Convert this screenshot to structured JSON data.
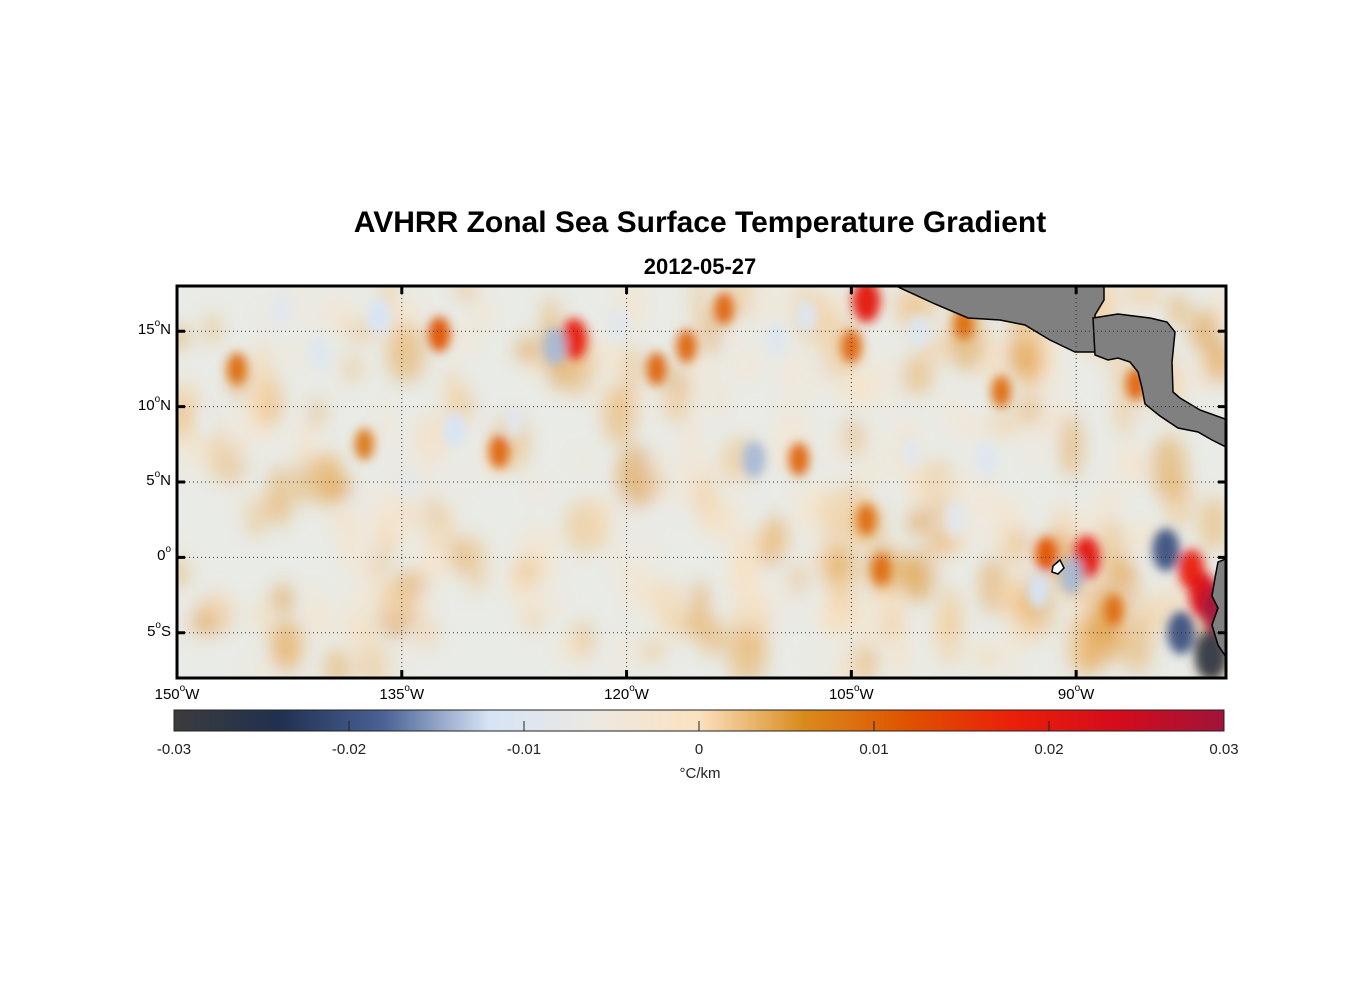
{
  "title": "AVHRR Zonal Sea Surface Temperature Gradient",
  "subtitle": "2012-05-27",
  "map": {
    "projection": "equirectangular",
    "lon_range": [
      -150,
      -80
    ],
    "lat_range": [
      -8,
      18
    ],
    "grid": "dotted",
    "land_color": "#808080",
    "lat_ticks": [
      {
        "value": 15,
        "num": "15",
        "hemi": "N"
      },
      {
        "value": 10,
        "num": "10",
        "hemi": "N"
      },
      {
        "value": 5,
        "num": "5",
        "hemi": "N"
      },
      {
        "value": 0,
        "num": "0",
        "hemi": ""
      },
      {
        "value": -5,
        "num": "5",
        "hemi": "S"
      }
    ],
    "lon_ticks": [
      {
        "value": -150,
        "num": "150",
        "hemi": "W"
      },
      {
        "value": -135,
        "num": "135",
        "hemi": "W"
      },
      {
        "value": -120,
        "num": "120",
        "hemi": "W"
      },
      {
        "value": -105,
        "num": "105",
        "hemi": "W"
      },
      {
        "value": -90,
        "num": "90",
        "hemi": "W"
      }
    ],
    "field_features": [
      {
        "lon": -132.5,
        "lat": 14.8,
        "value": 0.012
      },
      {
        "lon": -123.5,
        "lat": 14.5,
        "value": 0.018
      },
      {
        "lon": -124.8,
        "lat": 14.0,
        "value": -0.014
      },
      {
        "lon": -116.0,
        "lat": 14.0,
        "value": 0.01
      },
      {
        "lon": -104.0,
        "lat": 17.0,
        "value": 0.02
      },
      {
        "lon": -105.0,
        "lat": 14.0,
        "value": 0.01
      },
      {
        "lon": -136.5,
        "lat": 16.0,
        "value": -0.012
      },
      {
        "lon": -146.0,
        "lat": 12.5,
        "value": 0.009
      },
      {
        "lon": -131.5,
        "lat": 8.5,
        "value": -0.012
      },
      {
        "lon": -128.5,
        "lat": 7.0,
        "value": 0.01
      },
      {
        "lon": -118.0,
        "lat": 12.5,
        "value": 0.01
      },
      {
        "lon": -111.5,
        "lat": 6.5,
        "value": -0.014
      },
      {
        "lon": -108.5,
        "lat": 6.5,
        "value": 0.01
      },
      {
        "lon": -104.0,
        "lat": 2.5,
        "value": 0.009
      },
      {
        "lon": -103.0,
        "lat": -0.8,
        "value": 0.009
      },
      {
        "lon": -92.0,
        "lat": 0.2,
        "value": 0.012
      },
      {
        "lon": -89.3,
        "lat": 0.0,
        "value": 0.02
      },
      {
        "lon": -90.3,
        "lat": -1.2,
        "value": -0.014
      },
      {
        "lon": -84.0,
        "lat": 0.5,
        "value": -0.02
      },
      {
        "lon": -82.3,
        "lat": -0.8,
        "value": 0.018
      },
      {
        "lon": -81.5,
        "lat": -2.5,
        "value": 0.022
      },
      {
        "lon": -80.5,
        "lat": -3.5,
        "value": 0.03
      },
      {
        "lon": -83.0,
        "lat": -5.0,
        "value": -0.02
      },
      {
        "lon": -81.0,
        "lat": -6.5,
        "value": -0.028
      },
      {
        "lon": -95.0,
        "lat": 11.0,
        "value": 0.009
      },
      {
        "lon": -96.0,
        "lat": 6.5,
        "value": -0.01
      },
      {
        "lon": -86.0,
        "lat": 11.5,
        "value": 0.01
      },
      {
        "lon": -137.5,
        "lat": 7.5,
        "value": 0.008
      },
      {
        "lon": -140.5,
        "lat": 13.5,
        "value": -0.01
      },
      {
        "lon": -127.5,
        "lat": 9.0,
        "value": -0.009
      },
      {
        "lon": -113.5,
        "lat": 16.5,
        "value": 0.01
      },
      {
        "lon": -108.0,
        "lat": 16.0,
        "value": -0.01
      },
      {
        "lon": -110.0,
        "lat": 14.5,
        "value": -0.01
      },
      {
        "lon": -101.0,
        "lat": 7.0,
        "value": -0.009
      },
      {
        "lon": -98.0,
        "lat": 2.5,
        "value": -0.009
      },
      {
        "lon": -92.5,
        "lat": -2.2,
        "value": -0.012
      },
      {
        "lon": -87.5,
        "lat": -3.5,
        "value": 0.009
      },
      {
        "lon": -148.0,
        "lat": 9.0,
        "value": -0.007
      },
      {
        "lon": -143.0,
        "lat": 16.5,
        "value": -0.009
      },
      {
        "lon": -120.5,
        "lat": 15.5,
        "value": -0.009
      },
      {
        "lon": -100.5,
        "lat": 15.0,
        "value": -0.01
      },
      {
        "lon": -97.5,
        "lat": 15.5,
        "value": 0.009
      },
      {
        "lon": -134.5,
        "lat": 5.0,
        "value": -0.008
      }
    ]
  },
  "colorbar": {
    "min": -0.03,
    "max": 0.03,
    "ticks": [
      "-0.03",
      "-0.02",
      "-0.01",
      "0",
      "0.01",
      "0.02",
      "0.03"
    ],
    "tick_values": [
      -0.03,
      -0.02,
      -0.01,
      0,
      0.01,
      0.02,
      0.03
    ],
    "unit_label": "°C/km",
    "colors": [
      "#3c3c3c",
      "#203050",
      "#4a6296",
      "#d6e4f5",
      "#ece9e2",
      "#fbe1c0",
      "#d98a1c",
      "#e05200",
      "#ea1f0a",
      "#d40c1c",
      "#a0143a"
    ]
  }
}
